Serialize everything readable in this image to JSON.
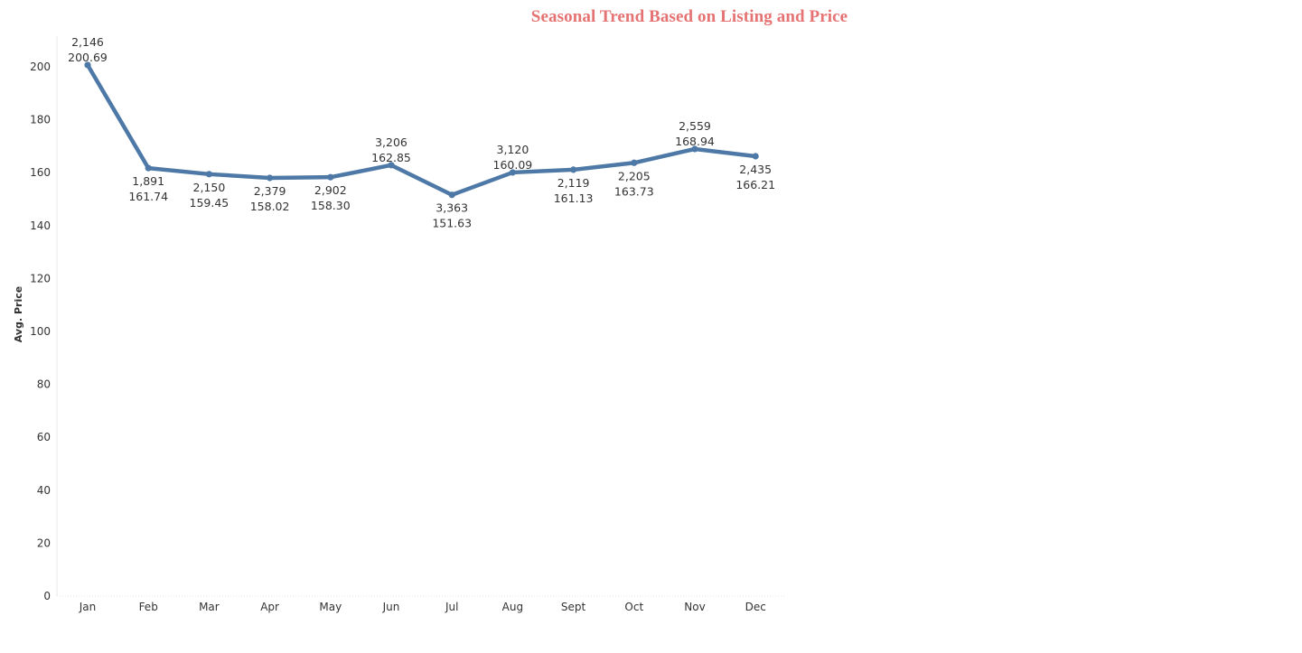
{
  "chart_data": {
    "type": "line",
    "title": "Seasonal Trend Based on Listing and Price",
    "ylabel": "Avg. Price",
    "xlabel": "",
    "ylim": [
      0,
      200
    ],
    "yticks": [
      0,
      20,
      40,
      60,
      80,
      100,
      120,
      140,
      160,
      180,
      200
    ],
    "grid": false,
    "categories": [
      "Jan",
      "Feb",
      "Mar",
      "Apr",
      "May",
      "Jun",
      "Jul",
      "Aug",
      "Sept",
      "Oct",
      "Nov",
      "Dec"
    ],
    "series": [
      {
        "values": [
          200.69,
          161.74,
          159.45,
          158.02,
          158.3,
          162.85,
          151.63,
          160.09,
          161.13,
          163.73,
          168.94,
          166.21
        ],
        "value_labels": [
          "200.69",
          "161.74",
          "159.45",
          "158.02",
          "158.30",
          "162.85",
          "151.63",
          "160.09",
          "161.13",
          "163.73",
          "168.94",
          "166.21"
        ]
      }
    ],
    "listing_counts": [
      "2,146",
      "1,891",
      "2,150",
      "2,379",
      "2,902",
      "3,206",
      "3,363",
      "3,120",
      "2,119",
      "2,205",
      "2,559",
      "2,435"
    ],
    "label_positions": [
      "above",
      "below",
      "below",
      "below",
      "below",
      "above",
      "below",
      "above",
      "below",
      "below",
      "above",
      "below"
    ],
    "colors": {
      "line": "#4e79a7",
      "title": "#e57373",
      "axis": "#e8e8e8"
    }
  }
}
